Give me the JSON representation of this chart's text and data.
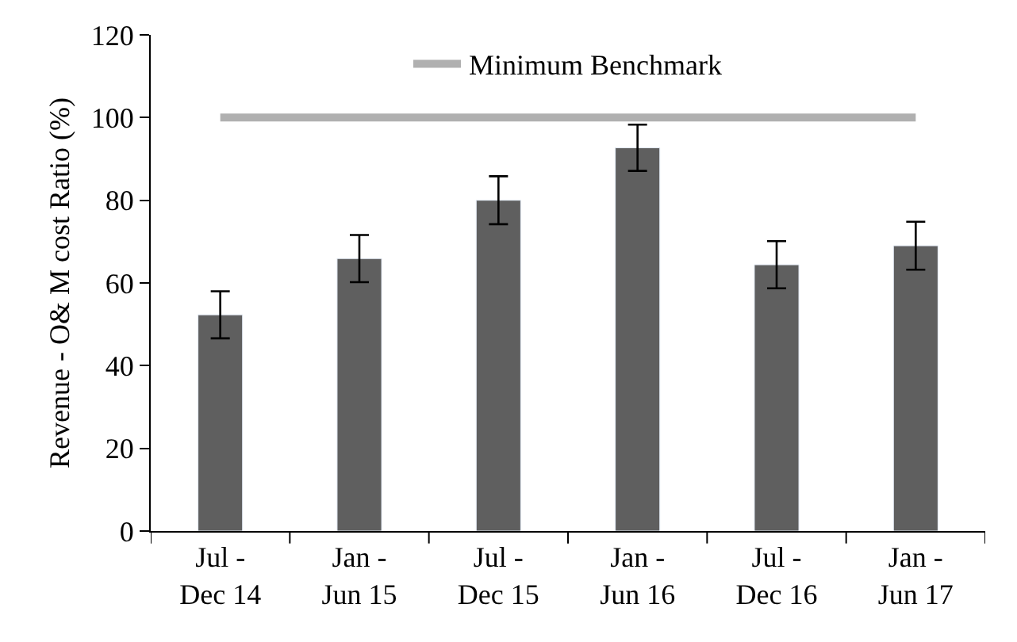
{
  "chart_data": {
    "type": "bar",
    "ylabel": "Revenue - O& M cost Ratio (%)",
    "categories": [
      "Jul - Dec 14",
      "Jan - Jun 15",
      "Jul - Dec 15",
      "Jan - Jun 16",
      "Jul - Dec 16",
      "Jan - Jun 17"
    ],
    "series": [
      {
        "color": "#5f5f5f",
        "values": [
          52.3,
          65.9,
          80,
          92.7,
          64.4,
          69
        ],
        "errors": [
          5.7,
          5.7,
          5.8,
          5.6,
          5.7,
          5.8
        ]
      },
      {
        "type": "line",
        "name": "Minimum Benchmark",
        "color": "#b0b0b0",
        "values": [
          100,
          100,
          100,
          100,
          100,
          100
        ]
      }
    ],
    "ylim": [
      0,
      120
    ],
    "yticks": [
      0,
      20,
      40,
      60,
      80,
      100,
      120
    ],
    "legend": "top",
    "marker": "none"
  }
}
